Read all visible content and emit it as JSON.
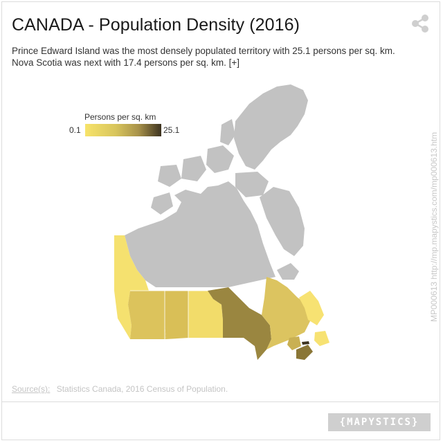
{
  "header": {
    "title": "CANADA - Population Density (2016)",
    "subtitle_line1": "Prince Edward Island was the most densely populated territory with 25.1 persons per sq. km.",
    "subtitle_line2": "Nova Scotia was next with 17.4 persons per sq. km.",
    "more_link": "[+]"
  },
  "share": {
    "icon": "share-icon"
  },
  "legend": {
    "title": "Persons per sq. km",
    "min": "0.1",
    "max": "25.1",
    "colors": [
      "#f7e36a",
      "#d8c55c",
      "#a8924a",
      "#3d3320"
    ]
  },
  "map_regions": [
    {
      "name": "Northern territories",
      "fill": "#c2c2c2"
    },
    {
      "name": "British Columbia",
      "fill": "#f5e16f"
    },
    {
      "name": "Alberta",
      "fill": "#dcc35c"
    },
    {
      "name": "Saskatchewan",
      "fill": "#d9bf57"
    },
    {
      "name": "Manitoba",
      "fill": "#f2dc6a"
    },
    {
      "name": "Ontario",
      "fill": "#9a8640"
    },
    {
      "name": "Quebec",
      "fill": "#dcc460"
    },
    {
      "name": "Newfoundland and Labrador",
      "fill": "#f7e272"
    },
    {
      "name": "New Brunswick",
      "fill": "#c9b053"
    },
    {
      "name": "Nova Scotia",
      "fill": "#8a7636"
    },
    {
      "name": "Prince Edward Island",
      "fill": "#3d3320"
    }
  ],
  "vertical_id": "MP000613 http://mp.mapystics.com/mp000613.htm",
  "source": {
    "label": "Source(s):",
    "text": "Statistics Canada, 2016 Census of Population."
  },
  "brand": "{MAPYSTICS}"
}
